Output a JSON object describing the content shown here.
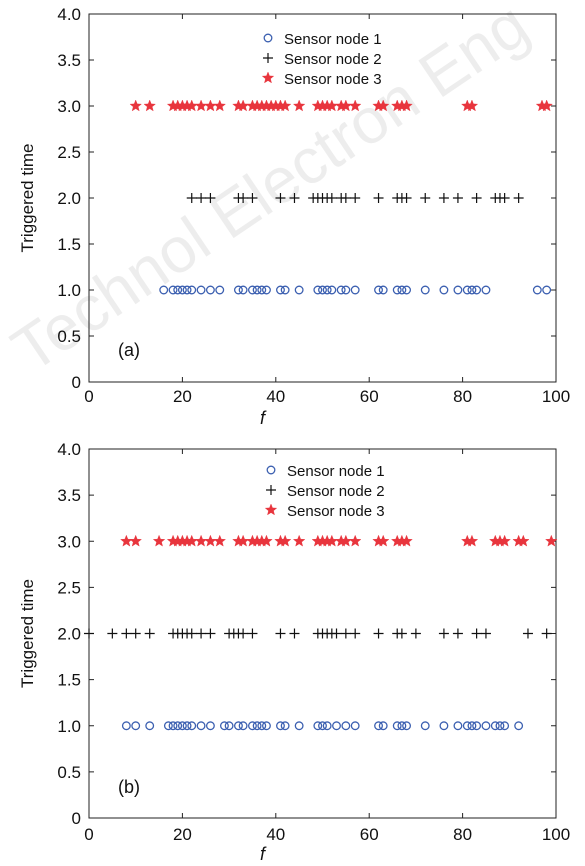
{
  "watermark": "Technol Electron Eng",
  "chart_data": [
    {
      "type": "scatter",
      "panel_label": "(a)",
      "xlabel": "f",
      "ylabel": "Triggered time",
      "xlim": [
        0,
        100
      ],
      "ylim": [
        0,
        4
      ],
      "xticks": [
        "0",
        "20",
        "40",
        "60",
        "80",
        "100"
      ],
      "yticks": [
        "0",
        "0.5",
        "1.0",
        "1.5",
        "2.0",
        "2.5",
        "3.0",
        "3.5",
        "4.0"
      ],
      "grid": false,
      "legend_position": "top-center",
      "series": [
        {
          "name": "Sensor node 1",
          "marker": "circle",
          "color": "#3b5fb0",
          "y": 1.0,
          "x": [
            16,
            18,
            19,
            20,
            21,
            22,
            24,
            26,
            28,
            32,
            33,
            35,
            36,
            37,
            38,
            41,
            42,
            45,
            49,
            50,
            51,
            52,
            54,
            55,
            57,
            62,
            63,
            66,
            67,
            68,
            72,
            76,
            79,
            81,
            82,
            83,
            85,
            96,
            98
          ]
        },
        {
          "name": "Sensor node 2",
          "marker": "plus",
          "color": "#111111",
          "y": 2.0,
          "x": [
            22,
            24,
            26,
            32,
            33,
            35,
            41,
            44,
            48,
            49,
            50,
            51,
            52,
            54,
            55,
            57,
            62,
            66,
            67,
            68,
            72,
            76,
            79,
            83,
            87,
            88,
            89,
            92
          ]
        },
        {
          "name": "Sensor node 3",
          "marker": "star",
          "color": "#e8353d",
          "y": 3.0,
          "x": [
            10,
            13,
            18,
            19,
            20,
            21,
            22,
            24,
            26,
            28,
            32,
            33,
            35,
            36,
            37,
            38,
            39,
            40,
            41,
            42,
            45,
            49,
            50,
            51,
            52,
            54,
            55,
            57,
            62,
            63,
            66,
            67,
            68,
            81,
            82,
            97,
            98
          ]
        }
      ]
    },
    {
      "type": "scatter",
      "panel_label": "(b)",
      "xlabel": "f",
      "ylabel": "Triggered time",
      "xlim": [
        0,
        100
      ],
      "ylim": [
        0,
        4
      ],
      "xticks": [
        "0",
        "20",
        "40",
        "60",
        "80",
        "100"
      ],
      "yticks": [
        "0",
        "0.5",
        "1.0",
        "1.5",
        "2.0",
        "2.5",
        "3.0",
        "3.5",
        "4.0"
      ],
      "grid": false,
      "legend_position": "top-center",
      "series": [
        {
          "name": "Sensor node 1",
          "marker": "circle",
          "color": "#3b5fb0",
          "y": 1.0,
          "x": [
            8,
            10,
            13,
            17,
            18,
            19,
            20,
            21,
            22,
            24,
            26,
            29,
            30,
            32,
            33,
            35,
            36,
            37,
            38,
            41,
            42,
            45,
            49,
            50,
            51,
            53,
            55,
            57,
            62,
            63,
            66,
            67,
            68,
            72,
            76,
            79,
            81,
            82,
            83,
            85,
            87,
            88,
            89,
            92
          ]
        },
        {
          "name": "Sensor node 2",
          "marker": "plus",
          "color": "#111111",
          "y": 2.0,
          "x": [
            0,
            5,
            8,
            10,
            13,
            18,
            19,
            20,
            21,
            22,
            24,
            26,
            30,
            31,
            32,
            33,
            35,
            41,
            44,
            49,
            50,
            51,
            52,
            53,
            55,
            57,
            62,
            66,
            67,
            70,
            76,
            79,
            83,
            85,
            94,
            98
          ]
        },
        {
          "name": "Sensor node 3",
          "marker": "star",
          "color": "#e8353d",
          "y": 3.0,
          "x": [
            8,
            10,
            15,
            18,
            19,
            20,
            21,
            22,
            24,
            26,
            28,
            32,
            33,
            35,
            36,
            37,
            38,
            41,
            42,
            45,
            49,
            50,
            51,
            52,
            54,
            55,
            57,
            62,
            63,
            66,
            67,
            68,
            81,
            82,
            87,
            88,
            89,
            92,
            93,
            99
          ]
        }
      ]
    }
  ]
}
